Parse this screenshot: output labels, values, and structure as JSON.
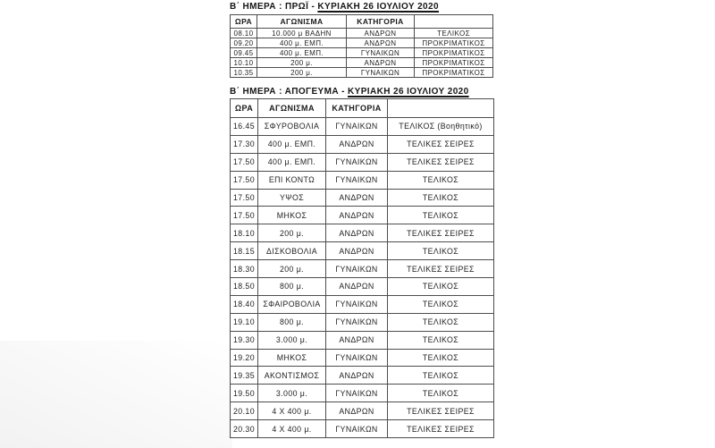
{
  "document": {
    "morning": {
      "title_prefix": "Β΄ ΗΜΕΡΑ : ΠΡΩΪ - ",
      "title_underlined": "ΚΥΡΙΑΚΗ 26 ΙΟΥΛΙΟΥ 2020",
      "headers": [
        "ΩΡΑ",
        "ΑΓΩΝΙΣΜΑ",
        "ΚΑΤΗΓΟΡΙΑ",
        ""
      ],
      "rows": [
        [
          "08.10",
          "10.000 μ ΒΑΔΗΝ",
          "ΑΝΔΡΩΝ",
          "ΤΕΛΙΚΟΣ"
        ],
        [
          "09.20",
          "400 μ. ΕΜΠ.",
          "ΑΝΔΡΩΝ",
          "ΠΡΟΚΡΙΜΑΤΙΚΟΣ"
        ],
        [
          "09.45",
          "400 μ. ΕΜΠ.",
          "ΓΥΝΑΙΚΩΝ",
          "ΠΡΟΚΡΙΜΑΤΙΚΟΣ"
        ],
        [
          "10.10",
          "200 μ.",
          "ΑΝΔΡΩΝ",
          "ΠΡΟΚΡΙΜΑΤΙΚΟΣ"
        ],
        [
          "10.35",
          "200 μ.",
          "ΓΥΝΑΙΚΩΝ",
          "ΠΡΟΚΡΙΜΑΤΙΚΟΣ"
        ]
      ]
    },
    "afternoon": {
      "title_prefix": "Β΄ ΗΜΕΡΑ : ΑΠΟΓΕΥΜΑ - ",
      "title_underlined": "ΚΥΡΙΑΚΗ 26 ΙΟΥΛΙΟΥ 2020",
      "headers": [
        "ΩΡΑ",
        "ΑΓΩΝΙΣΜΑ",
        "ΚΑΤΗΓΟΡΙΑ",
        ""
      ],
      "rows": [
        [
          "16.45",
          "ΣΦΥΡΟΒΟΛΙΑ",
          "ΓΥΝΑΙΚΩΝ",
          "ΤΕΛΙΚΟΣ (Βοηθητικό)"
        ],
        [
          "17.30",
          "400 μ. ΕΜΠ.",
          "ΑΝΔΡΩΝ",
          "ΤΕΛΙΚΕΣ ΣΕΙΡΕΣ"
        ],
        [
          "17.50",
          "400 μ. ΕΜΠ.",
          "ΓΥΝΑΙΚΩΝ",
          "ΤΕΛΙΚΕΣ ΣΕΙΡΕΣ"
        ],
        [
          "17.50",
          "ΕΠΙ ΚΟΝΤΩ",
          "ΓΥΝΑΙΚΩΝ",
          "ΤΕΛΙΚΟΣ"
        ],
        [
          "17.50",
          "ΥΨΟΣ",
          "ΑΝΔΡΩΝ",
          "ΤΕΛΙΚΟΣ"
        ],
        [
          "17.50",
          "ΜΗΚΟΣ",
          "ΑΝΔΡΩΝ",
          "ΤΕΛΙΚΟΣ"
        ],
        [
          "18.10",
          "200 μ.",
          "ΑΝΔΡΩΝ",
          "ΤΕΛΙΚΕΣ ΣΕΙΡΕΣ"
        ],
        [
          "18.15",
          "ΔΙΣΚΟΒΟΛΙΑ",
          "ΑΝΔΡΩΝ",
          "ΤΕΛΙΚΟΣ"
        ],
        [
          "18.30",
          "200 μ.",
          "ΓΥΝΑΙΚΩΝ",
          "ΤΕΛΙΚΕΣ ΣΕΙΡΕΣ"
        ],
        [
          "18.50",
          "800 μ.",
          "ΑΝΔΡΩΝ",
          "ΤΕΛΙΚΟΣ"
        ],
        [
          "18.40",
          "ΣΦΑΙΡΟΒΟΛΙΑ",
          "ΓΥΝΑΙΚΩΝ",
          "ΤΕΛΙΚΟΣ"
        ],
        [
          "19.10",
          "800 μ.",
          "ΓΥΝΑΙΚΩΝ",
          "ΤΕΛΙΚΟΣ"
        ],
        [
          "19.30",
          "3.000 μ.",
          "ΑΝΔΡΩΝ",
          "ΤΕΛΙΚΟΣ"
        ],
        [
          "19.20",
          "ΜΗΚΟΣ",
          "ΓΥΝΑΙΚΩΝ",
          "ΤΕΛΙΚΟΣ"
        ],
        [
          "19.35",
          "ΑΚΟΝΤΙΣΜΟΣ",
          "ΑΝΔΡΩΝ",
          "ΤΕΛΙΚΟΣ"
        ],
        [
          "19.50",
          "3.000 μ.",
          "ΓΥΝΑΙΚΩΝ",
          "ΤΕΛΙΚΟΣ"
        ],
        [
          "20.10",
          "4 Χ 400 μ.",
          "ΑΝΔΡΩΝ",
          "ΤΕΛΙΚΕΣ ΣΕΙΡΕΣ"
        ],
        [
          "20.30",
          "4 Χ 400 μ.",
          "ΓΥΝΑΙΚΩΝ",
          "ΤΕΛΙΚΕΣ ΣΕΙΡΕΣ"
        ]
      ]
    },
    "cell_names": [
      "cell-time",
      "cell-event",
      "cell-category",
      "cell-stage"
    ]
  }
}
